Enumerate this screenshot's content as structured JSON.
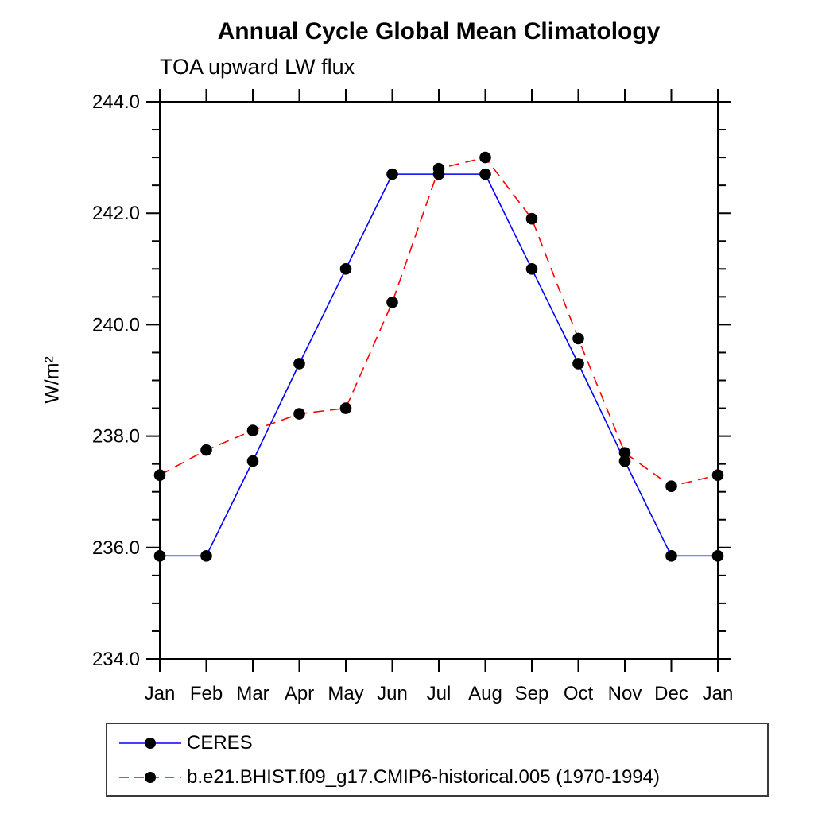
{
  "title": "Annual Cycle Global Mean Climatology",
  "subtitle": "TOA upward LW flux",
  "ylabel": "W/m²",
  "chart_data": {
    "type": "line",
    "categories": [
      "Jan",
      "Feb",
      "Mar",
      "Apr",
      "May",
      "Jun",
      "Jul",
      "Aug",
      "Sep",
      "Oct",
      "Nov",
      "Dec",
      "Jan"
    ],
    "series": [
      {
        "id": "ceres",
        "name": "CERES",
        "color": "#0000ff",
        "line_style": "solid",
        "marker": "filled-circle",
        "marker_color": "#000000",
        "values": [
          235.85,
          235.85,
          237.55,
          239.3,
          241.0,
          242.7,
          242.7,
          242.7,
          241.0,
          239.3,
          237.55,
          235.85,
          235.85
        ]
      },
      {
        "id": "model",
        "name": "b.e21.BHIST.f09_g17.CMIP6-historical.005 (1970-1994)",
        "color": "#ff0000",
        "line_style": "dashed",
        "marker": "filled-circle",
        "marker_color": "#000000",
        "values": [
          237.3,
          237.75,
          238.1,
          238.4,
          238.5,
          240.4,
          242.8,
          243.0,
          241.9,
          239.75,
          237.7,
          237.1,
          237.3
        ]
      }
    ],
    "ylim": [
      234.0,
      244.0
    ],
    "ytick_major": 2.0,
    "ytick_minor": 0.5,
    "ytick_labels": [
      "234.0",
      "236.0",
      "238.0",
      "240.0",
      "242.0",
      "244.0"
    ],
    "xlabel": "",
    "grid": false,
    "legend": {
      "position": "bottom-left",
      "boxed": true
    },
    "axis_color": "#000000",
    "text_color": "#000000"
  }
}
